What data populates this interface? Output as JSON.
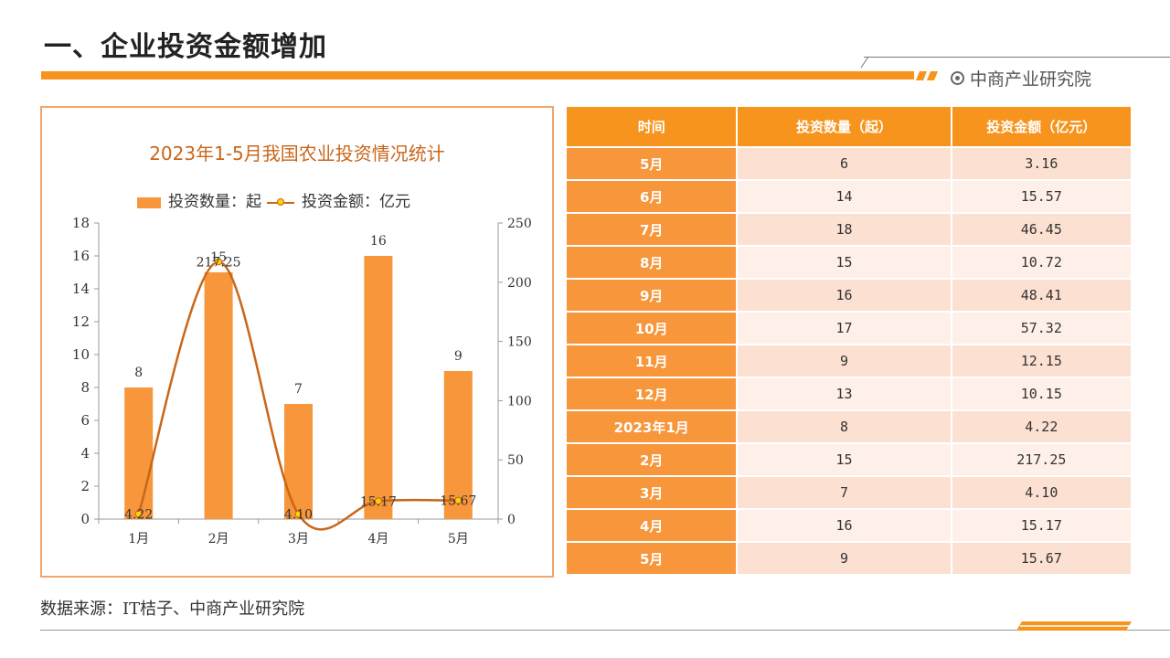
{
  "page": {
    "title": "一、企业投资金额增加",
    "brand": "中商产业研究院",
    "source": "数据来源：IT桔子、中商产业研究院"
  },
  "colors": {
    "accent": "#F7941D",
    "bar": "#F7963A",
    "line": "#C9661A",
    "marker": "#FFD200"
  },
  "chart_data": {
    "type": "bar",
    "title": "2023年1-5月我国农业投资情况统计",
    "categories": [
      "1月",
      "2月",
      "3月",
      "4月",
      "5月"
    ],
    "series": [
      {
        "name": "投资数量：起",
        "type": "bar",
        "axis": "left",
        "values": [
          8,
          15,
          7,
          16,
          9
        ]
      },
      {
        "name": "投资金额：亿元",
        "type": "line",
        "axis": "right",
        "values": [
          4.22,
          217.25,
          4.1,
          15.17,
          15.67
        ]
      }
    ],
    "ylim": [
      0,
      18
    ],
    "y_ticks": [
      0,
      2,
      4,
      6,
      8,
      10,
      12,
      14,
      16,
      18
    ],
    "y2lim": [
      0,
      250
    ],
    "y2_ticks": [
      0,
      50,
      100,
      150,
      200,
      250
    ],
    "legend": "top",
    "grid": false
  },
  "table": {
    "headers": [
      "时间",
      "投资数量（起）",
      "投资金额（亿元）"
    ],
    "rows": [
      [
        "5月",
        "6",
        "3.16"
      ],
      [
        "6月",
        "14",
        "15.57"
      ],
      [
        "7月",
        "18",
        "46.45"
      ],
      [
        "8月",
        "15",
        "10.72"
      ],
      [
        "9月",
        "16",
        "48.41"
      ],
      [
        "10月",
        "17",
        "57.32"
      ],
      [
        "11月",
        "9",
        "12.15"
      ],
      [
        "12月",
        "13",
        "10.15"
      ],
      [
        "2023年1月",
        "8",
        "4.22"
      ],
      [
        "2月",
        "15",
        "217.25"
      ],
      [
        "3月",
        "7",
        "4.10"
      ],
      [
        "4月",
        "16",
        "15.17"
      ],
      [
        "5月",
        "9",
        "15.67"
      ]
    ]
  }
}
